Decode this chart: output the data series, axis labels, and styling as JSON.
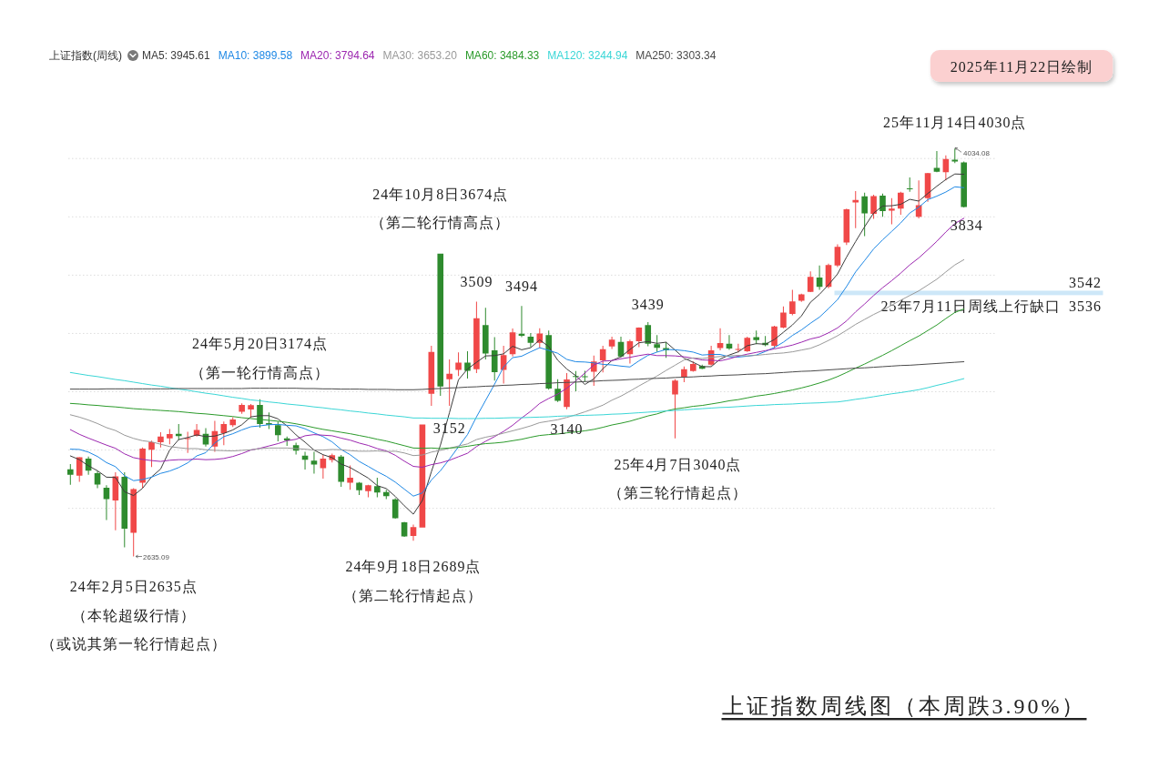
{
  "chart_data": {
    "type": "candlestick",
    "title": "上证指数周线图（本周跌3.90%）",
    "subtitle": "2025年11月22日绘制",
    "legend_title": "上证指数(周线)",
    "legend": "top",
    "grid": "y",
    "tick_labels": false,
    "categories": [
      null,
      null,
      null,
      null,
      null,
      null,
      null,
      null,
      null,
      null,
      null,
      null,
      null,
      null,
      null,
      null,
      null,
      null,
      null,
      null,
      null,
      null,
      null,
      null,
      null,
      null,
      null,
      null,
      null,
      null,
      null,
      null,
      null,
      null,
      null,
      null,
      null,
      null,
      null,
      null,
      null,
      null,
      null,
      null,
      null,
      null,
      null,
      null,
      null,
      null,
      null,
      null,
      null,
      null,
      null,
      null,
      null,
      null,
      null,
      null,
      null,
      null,
      null,
      null,
      null,
      null,
      null,
      null,
      null,
      null,
      null,
      null,
      null,
      null,
      null,
      null,
      null,
      null,
      null,
      null,
      null,
      null,
      null,
      null,
      null,
      null,
      null,
      null,
      null,
      null,
      null,
      null,
      null,
      null,
      null,
      null,
      null,
      null,
      null,
      null
    ],
    "yticks": [
      2800,
      3000,
      3200,
      3400,
      3600,
      3800,
      4000
    ],
    "ohlc": [
      [
        2934,
        2952,
        2881,
        2915
      ],
      [
        2912,
        2976,
        2891,
        2975
      ],
      [
        2971,
        2978,
        2915,
        2929
      ],
      [
        2921,
        2928,
        2869,
        2882
      ],
      [
        2871,
        2879,
        2760,
        2832
      ],
      [
        2827,
        2924,
        2725,
        2910
      ],
      [
        2908,
        2924,
        2666,
        2730
      ],
      [
        2716,
        2869,
        2635.09,
        2866
      ],
      [
        2888,
        3009,
        2869,
        3005
      ],
      [
        3001,
        3032,
        2942,
        3027
      ],
      [
        3027,
        3061,
        3009,
        3046
      ],
      [
        3040,
        3072,
        3020,
        3055
      ],
      [
        3056,
        3089,
        3035,
        3048
      ],
      [
        3038,
        3063,
        2990,
        3041
      ],
      [
        3049,
        3089,
        3046,
        3069
      ],
      [
        3056,
        3075,
        3012,
        3019
      ],
      [
        3012,
        3100,
        2994,
        3065
      ],
      [
        3058,
        3098,
        3017,
        3089
      ],
      [
        3085,
        3113,
        3079,
        3105
      ],
      [
        3131,
        3160,
        3124,
        3155
      ],
      [
        3139,
        3158,
        3110,
        3154
      ],
      [
        3155,
        3174,
        3077,
        3089
      ],
      [
        3092,
        3129,
        3072,
        3087
      ],
      [
        3085,
        3098,
        3030,
        3051
      ],
      [
        3040,
        3046,
        3014,
        3033
      ],
      [
        3017,
        3025,
        2985,
        2998
      ],
      [
        2981,
        2994,
        2933,
        2967
      ],
      [
        2964,
        2994,
        2919,
        2950
      ],
      [
        2938,
        2983,
        2902,
        2971
      ],
      [
        2966,
        2988,
        2957,
        2982
      ],
      [
        2978,
        2983,
        2874,
        2891
      ],
      [
        2888,
        2947,
        2864,
        2905
      ],
      [
        2888,
        2890,
        2846,
        2862
      ],
      [
        2859,
        2881,
        2838,
        2879
      ],
      [
        2876,
        2905,
        2838,
        2854
      ],
      [
        2856,
        2864,
        2832,
        2842
      ],
      [
        2831,
        2835,
        2765,
        2766
      ],
      [
        2752,
        2754,
        2702,
        2704
      ],
      [
        2705,
        2744,
        2689,
        2736
      ],
      [
        2734,
        3088,
        2734,
        3088
      ],
      [
        3193,
        3358,
        3152,
        3337
      ],
      [
        3674,
        3674,
        3186,
        3218
      ],
      [
        3243,
        3311,
        3152,
        3262
      ],
      [
        3275,
        3335,
        3254,
        3300
      ],
      [
        3300,
        3339,
        3245,
        3272
      ],
      [
        3277,
        3509,
        3264,
        3452
      ],
      [
        3429,
        3488,
        3311,
        3331
      ],
      [
        3342,
        3387,
        3238,
        3267
      ],
      [
        3275,
        3358,
        3228,
        3326
      ],
      [
        3329,
        3417,
        3321,
        3404
      ],
      [
        3399,
        3494,
        3387,
        3392
      ],
      [
        3389,
        3401,
        3353,
        3368
      ],
      [
        3368,
        3418,
        3350,
        3400
      ],
      [
        3394,
        3410,
        3207,
        3211
      ],
      [
        3210,
        3243,
        3165,
        3169
      ],
      [
        3148,
        3264,
        3140,
        3242
      ],
      [
        3254,
        3271,
        3202,
        3253
      ],
      [
        3253,
        3272,
        3234,
        3251
      ],
      [
        3269,
        3324,
        3220,
        3304
      ],
      [
        3308,
        3358,
        3266,
        3346
      ],
      [
        3355,
        3389,
        3347,
        3379
      ],
      [
        3371,
        3389,
        3318,
        3321
      ],
      [
        3329,
        3379,
        3297,
        3373
      ],
      [
        3373,
        3421,
        3353,
        3420
      ],
      [
        3429,
        3439,
        3356,
        3365
      ],
      [
        3363,
        3394,
        3337,
        3351
      ],
      [
        3350,
        3370,
        3316,
        3342
      ],
      [
        3191,
        3243,
        3040,
        3238
      ],
      [
        3251,
        3287,
        3233,
        3277
      ],
      [
        3271,
        3304,
        3269,
        3295
      ],
      [
        3288,
        3293,
        3277,
        3279
      ],
      [
        3293,
        3358,
        3290,
        3342
      ],
      [
        3350,
        3418,
        3342,
        3367
      ],
      [
        3365,
        3394,
        3344,
        3348
      ],
      [
        3346,
        3365,
        3335,
        3347
      ],
      [
        3339,
        3389,
        3337,
        3385
      ],
      [
        3387,
        3410,
        3363,
        3377
      ],
      [
        3368,
        3391,
        3356,
        3360
      ],
      [
        3358,
        3426,
        3349,
        3424
      ],
      [
        3420,
        3493,
        3418,
        3472
      ],
      [
        3467,
        3550,
        3462,
        3510
      ],
      [
        3512,
        3536,
        3508,
        3534
      ],
      [
        3543,
        3613,
        3542,
        3594
      ],
      [
        3592,
        3633,
        3550,
        3560
      ],
      [
        3560,
        3639,
        3555,
        3635
      ],
      [
        3633,
        3706,
        3628,
        3697
      ],
      [
        3712,
        3828,
        3703,
        3826
      ],
      [
        3849,
        3888,
        3761,
        3858
      ],
      [
        3870,
        3883,
        3734,
        3812
      ],
      [
        3810,
        3876,
        3793,
        3871
      ],
      [
        3873,
        3880,
        3800,
        3820
      ],
      [
        3821,
        3864,
        3774,
        3828
      ],
      [
        3828,
        3886,
        3807,
        3883
      ],
      [
        3898,
        3935,
        3886,
        3897
      ],
      [
        3800,
        3925,
        3795,
        3840
      ],
      [
        3864,
        3951,
        3852,
        3950
      ],
      [
        3968,
        4026,
        3953,
        3955
      ],
      [
        3953,
        4011,
        3925,
        3998
      ],
      [
        3996,
        4034.08,
        3984,
        3990
      ],
      [
        3987,
        3990,
        3832,
        3834
      ]
    ],
    "colors": [
      "#2e8b2e",
      "#f04848",
      "#2e8b2e",
      "#2e8b2e",
      "#2e8b2e",
      "#f04848",
      "#2e8b2e",
      "#f04848",
      "#f04848",
      "#f04848",
      "#f04848",
      "#f04848",
      "#2e8b2e",
      "#f04848",
      "#f04848",
      "#2e8b2e",
      "#f04848",
      "#f04848",
      "#f04848",
      "#f04848",
      "#f04848",
      "#2e8b2e",
      "#2e8b2e",
      "#2e8b2e",
      "#2e8b2e",
      "#2e8b2e",
      "#2e8b2e",
      "#2e8b2e",
      "#f04848",
      "#f04848",
      "#2e8b2e",
      "#f04848",
      "#2e8b2e",
      "#f04848",
      "#2e8b2e",
      "#2e8b2e",
      "#2e8b2e",
      "#2e8b2e",
      "#f04848",
      "#f04848",
      "#f04848",
      "#2e8b2e",
      "#f04848",
      "#f04848",
      "#2e8b2e",
      "#f04848",
      "#2e8b2e",
      "#2e8b2e",
      "#f04848",
      "#f04848",
      "#2e8b2e",
      "#2e8b2e",
      "#f04848",
      "#2e8b2e",
      "#2e8b2e",
      "#f04848",
      "#2e8b2e",
      "#2e8b2e",
      "#f04848",
      "#f04848",
      "#f04848",
      "#2e8b2e",
      "#f04848",
      "#f04848",
      "#2e8b2e",
      "#2e8b2e",
      "#2e8b2e",
      "#f04848",
      "#f04848",
      "#f04848",
      "#2e8b2e",
      "#f04848",
      "#f04848",
      "#2e8b2e",
      "#f04848",
      "#f04848",
      "#2e8b2e",
      "#2e8b2e",
      "#f04848",
      "#f04848",
      "#f04848",
      "#f04848",
      "#f04848",
      "#2e8b2e",
      "#f04848",
      "#f04848",
      "#f04848",
      "#f04848",
      "#2e8b2e",
      "#f04848",
      "#2e8b2e",
      "#f04848",
      "#f04848",
      "#2e8b2e",
      "#f04848",
      "#f04848",
      "#2e8b2e",
      "#f04848",
      "#2e8b2e",
      "#2e8b2e"
    ],
    "series": [
      {
        "type": "line",
        "name": "MA5: 3945.61",
        "color": "#3c3c3c",
        "values": [
          2980,
          2967,
          2946,
          2929,
          2907,
          2906,
          2857,
          2844,
          2869,
          2908,
          2935,
          3000,
          3036,
          3043,
          3052,
          3046,
          3048,
          3057,
          3069,
          3087,
          3114,
          3118,
          3118,
          3107,
          3083,
          3052,
          3027,
          3000,
          2984,
          2974,
          2952,
          2940,
          2922,
          2904,
          2878,
          2868,
          2841,
          2809,
          2780,
          2827,
          2926,
          3017,
          3128,
          3241,
          3278,
          3301,
          3323,
          3324,
          3330,
          3356,
          3344,
          3351,
          3378,
          3355,
          3308,
          3278,
          3255,
          3225,
          3244,
          3279,
          3307,
          3320,
          3345,
          3368,
          3372,
          3366,
          3370,
          3343,
          3315,
          3301,
          3286,
          3286,
          3312,
          3326,
          3337,
          3358,
          3365,
          3363,
          3379,
          3404,
          3429,
          3460,
          3507,
          3534,
          3567,
          3604,
          3662,
          3715,
          3766,
          3813,
          3837,
          3838,
          3843,
          3860,
          3854,
          3880,
          3905,
          3928,
          3947,
          3946
        ]
      },
      {
        "type": "line",
        "name": "MA10: 3899.58",
        "color": "#1e88e5",
        "values": [
          3003,
          3002,
          2993,
          2978,
          2957,
          2943,
          2912,
          2895,
          2899,
          2907,
          2920,
          2928,
          2940,
          2956,
          2980,
          2991,
          3024,
          3046,
          3056,
          3069,
          3080,
          3083,
          3087,
          3088,
          3085,
          3083,
          3073,
          3059,
          3046,
          3028,
          3002,
          2984,
          2961,
          2944,
          2926,
          2910,
          2890,
          2866,
          2842,
          2853,
          2897,
          2929,
          2969,
          3011,
          3053,
          3114,
          3170,
          3226,
          3285,
          3317,
          3322,
          3337,
          3351,
          3342,
          3332,
          3311,
          3303,
          3302,
          3299,
          3294,
          3292,
          3288,
          3285,
          3306,
          3325,
          3336,
          3345,
          3344,
          3341,
          3336,
          3326,
          3328,
          3328,
          3320,
          3319,
          3322,
          3326,
          3338,
          3352,
          3370,
          3393,
          3412,
          3435,
          3456,
          3485,
          3516,
          3561,
          3611,
          3650,
          3690,
          3721,
          3750,
          3779,
          3813,
          3833,
          3859,
          3871,
          3885,
          3903,
          3900
        ]
      },
      {
        "type": "line",
        "name": "MA20: 3794.64",
        "color": "#9c27b0",
        "values": [
          3070,
          3054,
          3041,
          3029,
          3017,
          3006,
          2987,
          2974,
          2968,
          2964,
          2961,
          2965,
          2967,
          2967,
          2969,
          2967,
          2968,
          2971,
          2978,
          2988,
          3000,
          3006,
          3014,
          3022,
          3032,
          3037,
          3049,
          3053,
          3051,
          3049,
          3041,
          3034,
          3024,
          3016,
          3005,
          2997,
          2982,
          2962,
          2944,
          2941,
          2950,
          2956,
          2965,
          2977,
          2989,
          3012,
          3030,
          3046,
          3064,
          3085,
          3110,
          3133,
          3160,
          3177,
          3192,
          3212,
          3237,
          3264,
          3292,
          3305,
          3307,
          3313,
          3318,
          3324,
          3329,
          3324,
          3324,
          3323,
          3320,
          3315,
          3309,
          3308,
          3306,
          3313,
          3322,
          3329,
          3335,
          3341,
          3347,
          3353,
          3360,
          3370,
          3381,
          3388,
          3402,
          3419,
          3443,
          3474,
          3501,
          3530,
          3557,
          3581,
          3607,
          3635,
          3659,
          3687,
          3716,
          3748,
          3777,
          3795
        ]
      },
      {
        "type": "line",
        "name": "MA30: 3653.20",
        "color": "#999999",
        "values": [
          3121,
          3113,
          3103,
          3091,
          3077,
          3067,
          3051,
          3040,
          3032,
          3028,
          3020,
          3012,
          3008,
          3005,
          3005,
          3001,
          2999,
          2998,
          2997,
          2999,
          3001,
          3005,
          3007,
          3007,
          3007,
          3005,
          3003,
          3000,
          3000,
          3002,
          3001,
          2998,
          2996,
          2996,
          2997,
          2995,
          2996,
          2990,
          2981,
          2983,
          2993,
          2999,
          3006,
          3014,
          3021,
          3036,
          3044,
          3050,
          3058,
          3066,
          3074,
          3083,
          3094,
          3099,
          3104,
          3112,
          3121,
          3131,
          3142,
          3154,
          3171,
          3185,
          3202,
          3220,
          3237,
          3254,
          3273,
          3291,
          3309,
          3316,
          3314,
          3318,
          3321,
          3323,
          3325,
          3323,
          3325,
          3328,
          3331,
          3333,
          3337,
          3343,
          3349,
          3361,
          3376,
          3392,
          3411,
          3431,
          3448,
          3465,
          3480,
          3497,
          3514,
          3530,
          3546,
          3566,
          3586,
          3611,
          3635,
          3653
        ]
      },
      {
        "type": "line",
        "name": "MA60: 3484.33",
        "color": "#2a9a2a",
        "values": [
          3160,
          3158,
          3155,
          3153,
          3150,
          3148,
          3145,
          3142,
          3140,
          3138,
          3136,
          3134,
          3132,
          3129,
          3126,
          3124,
          3121,
          3118,
          3115,
          3111,
          3108,
          3105,
          3102,
          3099,
          3095,
          3090,
          3084,
          3077,
          3071,
          3066,
          3061,
          3056,
          3050,
          3044,
          3037,
          3031,
          3023,
          3015,
          3007,
          3006,
          3007,
          3005,
          3007,
          3009,
          3013,
          3018,
          3022,
          3024,
          3027,
          3032,
          3037,
          3044,
          3050,
          3053,
          3055,
          3059,
          3062,
          3066,
          3071,
          3078,
          3086,
          3092,
          3099,
          3108,
          3117,
          3124,
          3134,
          3141,
          3145,
          3150,
          3153,
          3158,
          3163,
          3169,
          3173,
          3179,
          3185,
          3189,
          3194,
          3200,
          3206,
          3213,
          3221,
          3230,
          3240,
          3252,
          3266,
          3281,
          3295,
          3310,
          3325,
          3341,
          3358,
          3375,
          3391,
          3410,
          3429,
          3451,
          3472,
          3484
        ]
      },
      {
        "type": "line",
        "name": "MA120: 3244.94",
        "color": "#3ad6d6",
        "values": [
          3266,
          3261,
          3256,
          3252,
          3247,
          3242,
          3238,
          3233,
          3228,
          3223,
          3219,
          3214,
          3209,
          3205,
          3200,
          3195,
          3191,
          3186,
          3181,
          3177,
          3172,
          3169,
          3165,
          3162,
          3158,
          3155,
          3152,
          3148,
          3145,
          3141,
          3138,
          3134,
          3131,
          3127,
          3124,
          3120,
          3117,
          3114,
          3110,
          3110,
          3109,
          3109,
          3109,
          3108,
          3108,
          3108,
          3109,
          3109,
          3110,
          3111,
          3111,
          3112,
          3113,
          3114,
          3116,
          3117,
          3118,
          3119,
          3120,
          3121,
          3123,
          3124,
          3126,
          3128,
          3130,
          3132,
          3134,
          3136,
          3138,
          3140,
          3142,
          3144,
          3146,
          3147,
          3149,
          3151,
          3153,
          3154,
          3156,
          3157,
          3158,
          3160,
          3161,
          3162,
          3164,
          3165,
          3169,
          3174,
          3178,
          3183,
          3188,
          3193,
          3197,
          3202,
          3207,
          3214,
          3222,
          3229,
          3237,
          3245
        ]
      },
      {
        "type": "line",
        "name": "MA250: 3303.34",
        "color": "#4a4a4a",
        "values": [
          3209,
          3209,
          3209,
          3209,
          3210,
          3210,
          3210,
          3210,
          3210,
          3210,
          3210,
          3210,
          3211,
          3211,
          3211,
          3211,
          3211,
          3211,
          3211,
          3211,
          3212,
          3212,
          3212,
          3212,
          3212,
          3212,
          3211,
          3211,
          3210,
          3210,
          3209,
          3209,
          3209,
          3208,
          3208,
          3208,
          3207,
          3207,
          3207,
          3208,
          3210,
          3211,
          3213,
          3214,
          3216,
          3217,
          3219,
          3220,
          3222,
          3223,
          3225,
          3226,
          3228,
          3229,
          3231,
          3232,
          3233,
          3235,
          3236,
          3238,
          3239,
          3240,
          3242,
          3243,
          3245,
          3246,
          3247,
          3249,
          3250,
          3251,
          3253,
          3254,
          3256,
          3257,
          3258,
          3260,
          3261,
          3262,
          3264,
          3266,
          3268,
          3270,
          3271,
          3273,
          3275,
          3277,
          3279,
          3281,
          3282,
          3284,
          3286,
          3288,
          3290,
          3291,
          3293,
          3295,
          3297,
          3299,
          3301,
          3303
        ]
      }
    ],
    "bands": [
      {
        "axis": "y",
        "from": 3536,
        "to": 3542,
        "label": "25年7月11日周线上行缺口",
        "color": "#cde7f8"
      }
    ],
    "annotations": [
      "24年5月20日3174点",
      "（第一轮行情高点）",
      "24年10月8日3674点",
      "（第二轮行情高点）",
      {
        "text": "3509",
        "y": 3509
      },
      {
        "text": "3494",
        "y": 3494
      },
      {
        "text": "3439",
        "y": 3439
      },
      {
        "text": "3152",
        "y": 3152
      },
      {
        "text": "3140",
        "y": 3140
      },
      {
        "text": "25年4月7日3040点",
        "y": 3040
      },
      "（第三轮行情起点）",
      {
        "text": "24年2月5日2635点",
        "y": 2635.09
      },
      "（本轮超级行情）",
      "（或说其第一轮行情起点）",
      {
        "text": "24年9月18日2689点",
        "y": 2689
      },
      "（第二轮行情起点）",
      {
        "text": "25年11月14日4030点",
        "y": 4030
      },
      {
        "text": "3834",
        "y": 3834
      },
      {
        "text": "3542",
        "y": 3542
      },
      {
        "text": "3536",
        "y": 3536
      },
      "2635.09",
      "4034.08"
    ]
  }
}
